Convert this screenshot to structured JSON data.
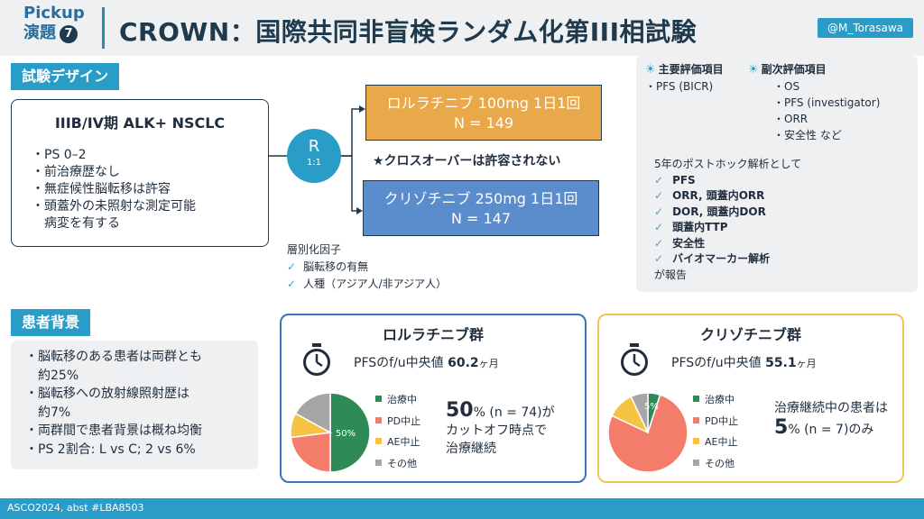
{
  "header": {
    "pickup_label": "Pickup",
    "pickup_sub": "演題",
    "pickup_num": "7",
    "title": "CROWN：国際共同非盲検ランダム化第III相試験",
    "handle": "@M_Torasawa"
  },
  "design": {
    "section_label": "試験デザイン",
    "patient_title": "IIIB/IV期 ALK+ NSCLC",
    "criteria": [
      "・PS 0–2",
      "・前治療歴なし",
      "・無症候性脳転移は許容",
      "・頭蓋外の未照射な測定可能",
      "　病変を有する"
    ],
    "r_label": "R",
    "r_ratio": "1:1",
    "arm1_line1": "ロルラチニブ 100mg 1日1回",
    "arm1_line2": "N = 149",
    "arm2_line1": "クリゾチニブ 250mg 1日1回",
    "arm2_line2": "N = 147",
    "no_crossover": "★クロスオーバーは許容されない",
    "strat_title": "層別化因子",
    "strat_items": [
      "脳転移の有無",
      "人種（アジア人/非アジア人）"
    ]
  },
  "endpoints": {
    "primary_title": "主要評価項目",
    "primary_items": [
      "・PFS (BICR)"
    ],
    "secondary_title": "副次評価項目",
    "secondary_items": [
      "・OS",
      "・PFS (investigator)",
      "・ORR",
      "・安全性 など"
    ],
    "posthoc_intro": "5年のポストホック解析として",
    "posthoc_items": [
      "PFS",
      "ORR, 頭蓋内ORR",
      "DOR, 頭蓋内DOR",
      "頭蓋内TTP",
      "安全性",
      "バイオマーカー解析"
    ],
    "posthoc_outro": "が報告"
  },
  "background": {
    "section_label": "患者背景",
    "items": [
      "・脳転移のある患者は両群とも",
      "　約25%",
      "・脳転移への放射線照射歴は",
      "　約7%",
      "・両群間で患者背景は概ね均衡",
      "・PS 2割合: L vs C; 2 vs 6%"
    ]
  },
  "results": {
    "lorlatinib": {
      "title": "ロルラチニブ群",
      "pfs_prefix": "PFSのf/u中央値 ",
      "pfs_value": "60.2",
      "pfs_unit": "ヶ月",
      "pie_label": "50%",
      "big_num": "50",
      "big_line1": "% (n = 74)が",
      "big_line2": "カットオフ時点で",
      "big_line3": "治療継続"
    },
    "crizotinib": {
      "title": "クリゾチニブ群",
      "pfs_prefix": "PFSのf/u中央値 ",
      "pfs_value": "55.1",
      "pfs_unit": "ヶ月",
      "pie_label": "5%",
      "big_pre": "治療継続中の患者は",
      "big_num": "5",
      "big_post": "% (n = 7)のみ"
    },
    "legend": [
      "治療中",
      "PD中止",
      "AE中止",
      "その他"
    ]
  },
  "chart_data": [
    {
      "type": "pie",
      "title": "ロルラチニブ群",
      "categories": [
        "治療中",
        "PD中止",
        "AE中止",
        "その他"
      ],
      "values": [
        50,
        23,
        10,
        17
      ],
      "colors": [
        "#2e8b57",
        "#f47c6a",
        "#f5c242",
        "#a6a6a6"
      ]
    },
    {
      "type": "pie",
      "title": "クリゾチニブ群",
      "categories": [
        "治療中",
        "PD中止",
        "AE中止",
        "その他"
      ],
      "values": [
        5,
        77,
        11,
        7
      ],
      "colors": [
        "#2e8b57",
        "#f47c6a",
        "#f5c242",
        "#a6a6a6"
      ]
    }
  ],
  "footer": {
    "text": "ASCO2024, abst #LBA8503"
  }
}
